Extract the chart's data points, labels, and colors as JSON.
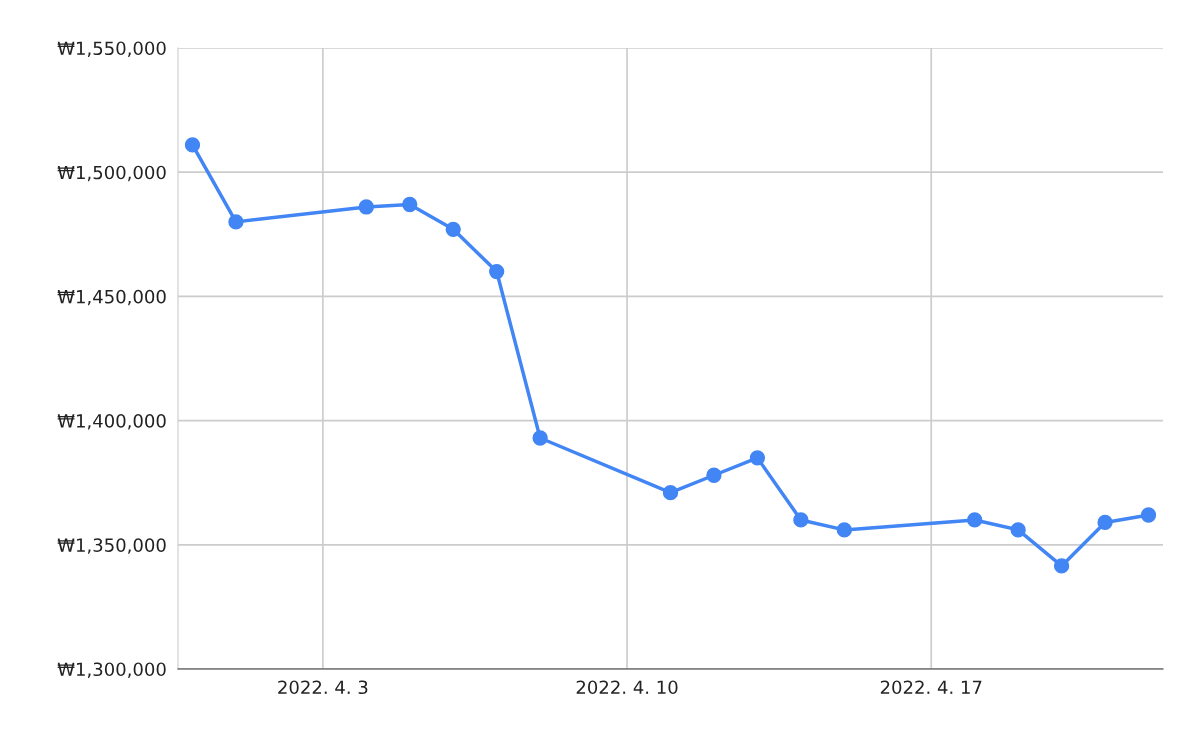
{
  "chart_data": {
    "type": "line",
    "x": [
      "2022-03-31",
      "2022-04-01",
      "2022-04-04",
      "2022-04-05",
      "2022-04-06",
      "2022-04-07",
      "2022-04-08",
      "2022-04-11",
      "2022-04-12",
      "2022-04-13",
      "2022-04-14",
      "2022-04-15",
      "2022-04-18",
      "2022-04-19",
      "2022-04-20",
      "2022-04-21",
      "2022-04-22"
    ],
    "series": [
      {
        "color": "#4285f4",
        "values": [
          1511000,
          1480000,
          1486000,
          1487000,
          1477000,
          1460000,
          1393000,
          1371000,
          1378000,
          1385000,
          1360000,
          1356000,
          1360000,
          1356000,
          1341500,
          1359000,
          1362000
        ]
      }
    ],
    "xlim": [
      "2022-03-30T16:00",
      "2022-04-22T08:00"
    ],
    "xticks": [
      {
        "value": "2022-04-03",
        "label": "2022. 4. 3"
      },
      {
        "value": "2022-04-10",
        "label": "2022. 4. 10"
      },
      {
        "value": "2022-04-17",
        "label": "2022. 4. 17"
      }
    ],
    "ylim": [
      1300000,
      1550000
    ],
    "yticks": [
      {
        "value": 1300000,
        "label": "₩1,300,000"
      },
      {
        "value": 1350000,
        "label": "₩1,350,000"
      },
      {
        "value": 1400000,
        "label": "₩1,400,000"
      },
      {
        "value": 1450000,
        "label": "₩1,450,000"
      },
      {
        "value": 1500000,
        "label": "₩1,500,000"
      },
      {
        "value": 1550000,
        "label": "₩1,550,000"
      }
    ],
    "grid": true,
    "marker": "circle",
    "line_style": "solid"
  }
}
